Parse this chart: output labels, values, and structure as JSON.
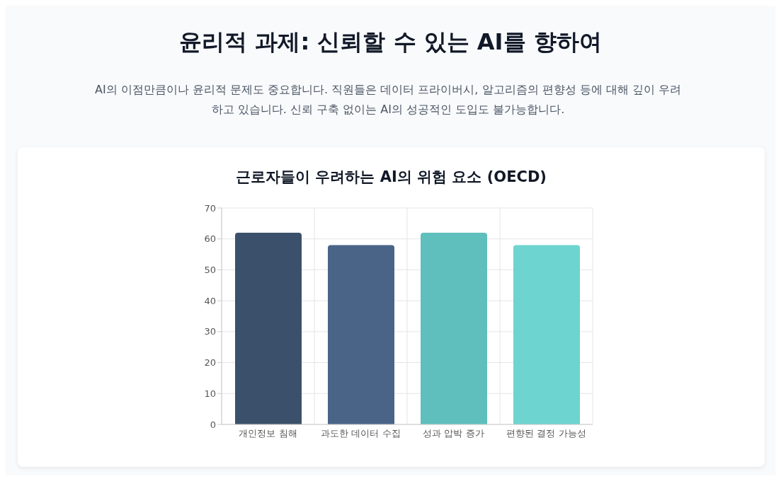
{
  "chart_data": {
    "type": "bar",
    "title": "근로자들이 우려하는 AI의 위험 요소 (OECD)",
    "annotations": [
      "윤리적 과제: 신뢰할 수 있는 AI를 향하여",
      "AI의 이점만큼이나 윤리적 문제도 중요합니다. 직원들은 데이터 프라이버시, 알고리즘의 편향성 등에 대해 깊이 우려하고 있습니다. 신뢰 구축 없이는 AI의 성공적인 도입도 불가능합니다."
    ],
    "categories": [
      "개인정보 침해",
      "과도한 데이터 수집",
      "성과 압박 증가",
      "편향된 결정 가능성"
    ],
    "values": [
      62,
      58,
      62,
      58
    ],
    "colors": [
      "#3b516b",
      "#4a6488",
      "#5ebfbd",
      "#6dd4cf"
    ],
    "ylim": [
      0,
      70
    ],
    "yticks": [
      0,
      10,
      20,
      30,
      40,
      50,
      60,
      70
    ],
    "grid": true
  }
}
